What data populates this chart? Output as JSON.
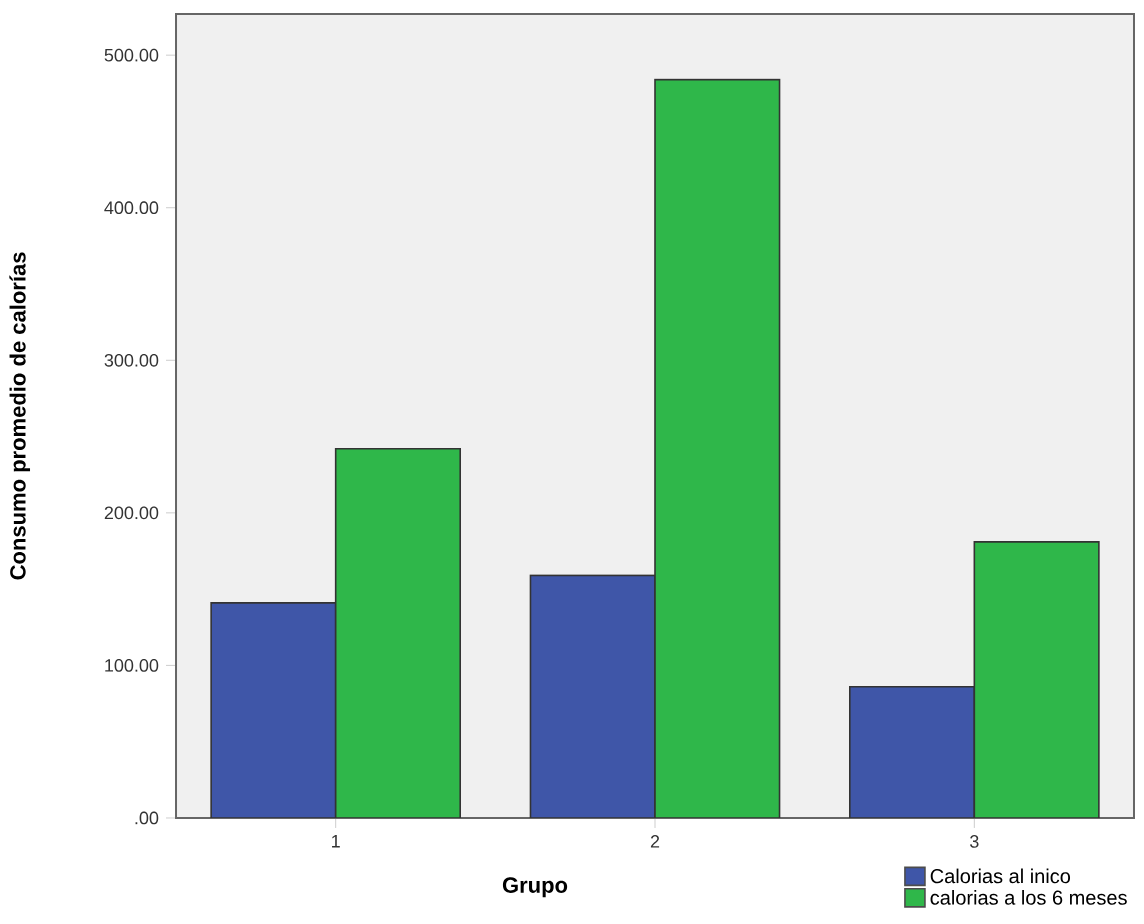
{
  "chart_data": {
    "type": "bar",
    "xlabel": "Grupo",
    "ylabel": "Consumo promedio de calorías",
    "categories": [
      "1",
      "2",
      "3"
    ],
    "series": [
      {
        "name": "Calorias al inico",
        "color": "#3f56a8",
        "values": [
          141,
          159,
          86
        ]
      },
      {
        "name": "calorias a los 6 meses",
        "color": "#2fb74a",
        "values": [
          242,
          484,
          181
        ]
      }
    ],
    "ylim": [
      0,
      527
    ],
    "yticks": [
      {
        "value": 0,
        "label": ".00"
      },
      {
        "value": 100,
        "label": "100.00"
      },
      {
        "value": 200,
        "label": "200.00"
      },
      {
        "value": 300,
        "label": "300.00"
      },
      {
        "value": 400,
        "label": "400.00"
      },
      {
        "value": 500,
        "label": "500.00"
      }
    ],
    "legend": "bottom right",
    "grid": false
  }
}
